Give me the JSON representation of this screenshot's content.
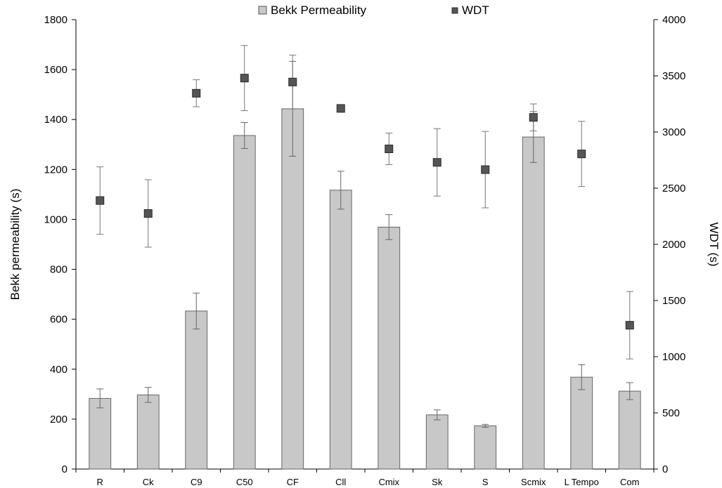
{
  "chart_data": {
    "type": "bar",
    "categories": [
      "R",
      "Ck",
      "C9",
      "C50",
      "CF",
      "Cll",
      "Cmix",
      "Sk",
      "S",
      "Scmix",
      "L_Tempo",
      "Com"
    ],
    "category_labels": [
      "R",
      "Ck",
      "C9",
      "C50",
      "CF",
      "Cll",
      "Cmix",
      "Sk",
      "S",
      "Scmix",
      "L  Tempo",
      "Com"
    ],
    "series": [
      {
        "name": "Bekk Permeability",
        "kind": "bar",
        "axis": "left",
        "color": "#c8c8c8",
        "values": [
          283,
          297,
          633,
          1336,
          1443,
          1117,
          969,
          217,
          173,
          1330,
          368,
          312
        ],
        "error": [
          38,
          30,
          72,
          52,
          190,
          76,
          50,
          20,
          6,
          102,
          50,
          34
        ]
      },
      {
        "name": "WDT",
        "kind": "scatter",
        "axis": "right",
        "color": "#555555",
        "values": [
          2390,
          2275,
          3345,
          3480,
          3445,
          3210,
          2850,
          2730,
          2665,
          3130,
          2805,
          1280
        ],
        "error": [
          300,
          300,
          120,
          290,
          240,
          25,
          140,
          300,
          340,
          120,
          290,
          300
        ]
      }
    ],
    "ylabel": "Bekk permeability (s)",
    "y2label": "WDT (s)",
    "ylim": [
      0,
      1800
    ],
    "yticks": [
      "0",
      "200",
      "400",
      "600",
      "800",
      "1000",
      "1200",
      "1400",
      "1600",
      "1800"
    ],
    "y2lim": [
      0,
      4000
    ],
    "y2ticks": [
      "0",
      "500",
      "1000",
      "1500",
      "2000",
      "2500",
      "3000",
      "3500",
      "4000"
    ],
    "legend": [
      "Bekk Permeability",
      "WDT"
    ],
    "legend_position": "top-center",
    "grid": false
  }
}
